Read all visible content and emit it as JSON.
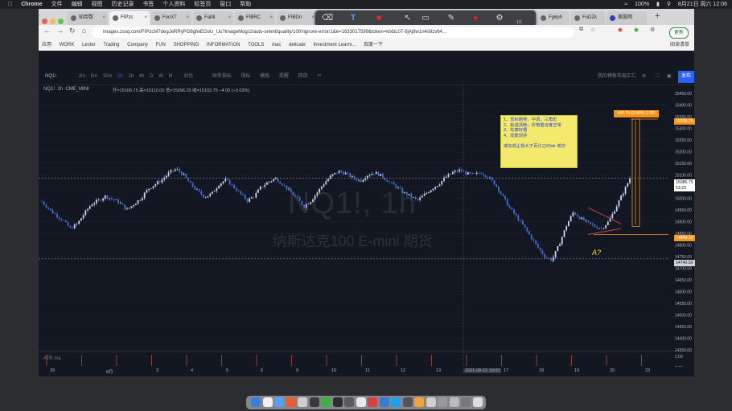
{
  "menubar": {
    "app": "Chrome",
    "items": [
      "文件",
      "编辑",
      "视图",
      "历史记录",
      "书签",
      "个人资料",
      "标签页",
      "窗口",
      "帮助"
    ],
    "battery": "100%",
    "datetime": "8月21日 周六 12:06"
  },
  "tabs": [
    {
      "label": "知否数",
      "active": false
    },
    {
      "label": "FIPzc",
      "active": true
    },
    {
      "label": "FonX7",
      "active": false
    },
    {
      "label": "FaMi",
      "active": false
    },
    {
      "label": "FIBRC",
      "active": false
    },
    {
      "label": "FIBDn",
      "active": false
    },
    {
      "label": "Fg6ph",
      "active": false
    },
    {
      "label": "FoDZk",
      "active": false
    },
    {
      "label": "美股网",
      "active": false
    }
  ],
  "annotation_toolbar": {
    "count": "1/1"
  },
  "address_bar": {
    "url": "images.zsxq.com/FIPzcM7degJeRRyPG8gfwEGoU_Uu?imageMogr2/auto-orient/quality/100!/ignore-error/1&e=1633017599&token=kIxbL07-8jAj8w1n4s9zv64...",
    "update_label": "更新"
  },
  "bookmarks": [
    "应用",
    "WORK",
    "Lester",
    "Trading",
    "Company",
    "FUN",
    "SHOPPING",
    "INFORMATION",
    "TOOLS",
    "mac",
    "delicate",
    "Investment Learni...",
    "百度一下",
    "阅读清单"
  ],
  "tv_toolbar": {
    "symbol": "NQ1!",
    "intervals": [
      "2m",
      "5m",
      "15m",
      "1h",
      "2h",
      "4h",
      "D",
      "W",
      "M"
    ],
    "items": [
      "对比",
      "财务指标",
      "指标",
      "模板",
      "提醒",
      "回放"
    ],
    "layout": "我的模板布局汇仁",
    "publish": "发布"
  },
  "legend": {
    "symbol": "NQ1!",
    "interval": "1h",
    "exchange": "CME_MINI",
    "ohlc": "开=15106.75 高=15110.00 低=15096.25 收=15102.75 −4.00 (−0.03%)"
  },
  "watermark": {
    "line1": "NQ1!, 1h",
    "line2": "纳斯达克100 E-mini 期货"
  },
  "note": {
    "text": "1、低标刷势，中调，三角形\n2、轨迹清晰，价格重合度正常\n3、轮廓好看\n4、动能较好\n\n或完成止损大于百分之60atr 或亦"
  },
  "measure_label": "445.75 (2.99%) 1783",
  "annotation_a": "A?",
  "atr_label": "ATR n/a",
  "chart_data": {
    "type": "candlestick",
    "symbol": "NQ1!",
    "timeframe": "1h",
    "y_axis_ticks": [
      15450.0,
      15400.0,
      15350.0,
      15300.0,
      15250.0,
      15200.0,
      15150.0,
      15100.0,
      15050.0,
      15000.0,
      14950.0,
      14900.0,
      14850.0,
      14800.0,
      14750.0,
      14700.0,
      14650.0,
      14600.0,
      14550.0,
      14500.0,
      14450.0,
      14400.0,
      14350.0
    ],
    "ylim": [
      14330,
      15470
    ],
    "x_axis_labels": [
      "29",
      "8月",
      "3",
      "4",
      "5",
      "6",
      "9",
      "10",
      "11",
      "12",
      "13",
      "2021-08-15 19:00",
      "17",
      "18",
      "19",
      "20",
      "23"
    ],
    "price_labels": [
      {
        "value": "15339.25",
        "bg": "#f7931a",
        "color": "#ffffff"
      },
      {
        "value": "15085.75",
        "bg": "#ffffff",
        "color": "#131722"
      },
      {
        "value": "53:23",
        "bg": "#ffffff",
        "color": "#131722"
      },
      {
        "value": "14844.50",
        "bg": "#f7931a",
        "color": "#ffffff"
      },
      {
        "value": "14740.50",
        "bg": "#d1d4dc",
        "color": "#131722"
      }
    ],
    "horizontal_lines": [
      15085.75,
      14740.5
    ],
    "close_path": [
      [
        0,
        14985
      ],
      [
        3,
        14940
      ],
      [
        6,
        14905
      ],
      [
        8,
        14870
      ],
      [
        10,
        14890
      ],
      [
        12,
        14935
      ],
      [
        14,
        14975
      ],
      [
        16,
        14990
      ],
      [
        18,
        15010
      ],
      [
        20,
        14995
      ],
      [
        22,
        14980
      ],
      [
        24,
        14950
      ],
      [
        26,
        14975
      ],
      [
        28,
        15000
      ],
      [
        30,
        15040
      ],
      [
        32,
        15060
      ],
      [
        34,
        15080
      ],
      [
        36,
        15110
      ],
      [
        38,
        15125
      ],
      [
        40,
        15100
      ],
      [
        42,
        15060
      ],
      [
        44,
        15030
      ],
      [
        46,
        15005
      ],
      [
        48,
        15020
      ],
      [
        50,
        15060
      ],
      [
        52,
        15080
      ],
      [
        54,
        15050
      ],
      [
        56,
        15020
      ],
      [
        58,
        14990
      ],
      [
        60,
        15010
      ],
      [
        62,
        15050
      ],
      [
        64,
        15070
      ],
      [
        66,
        15085
      ],
      [
        68,
        15060
      ],
      [
        70,
        15030
      ],
      [
        72,
        15000
      ],
      [
        74,
        14965
      ],
      [
        76,
        14990
      ],
      [
        78,
        15030
      ],
      [
        80,
        15070
      ],
      [
        82,
        15100
      ],
      [
        84,
        15115
      ],
      [
        86,
        15105
      ],
      [
        88,
        15085
      ],
      [
        90,
        15075
      ],
      [
        92,
        15100
      ],
      [
        94,
        15110
      ],
      [
        96,
        15095
      ],
      [
        98,
        15070
      ],
      [
        100,
        15050
      ],
      [
        102,
        15025
      ],
      [
        104,
        15010
      ],
      [
        106,
        14990
      ],
      [
        108,
        15015
      ],
      [
        110,
        15040
      ],
      [
        112,
        15060
      ],
      [
        114,
        15090
      ],
      [
        116,
        15110
      ],
      [
        118,
        15120
      ],
      [
        120,
        15105
      ],
      [
        122,
        15100
      ],
      [
        124,
        15110
      ],
      [
        126,
        15090
      ],
      [
        128,
        15060
      ],
      [
        130,
        15010
      ],
      [
        132,
        14960
      ],
      [
        134,
        14920
      ],
      [
        136,
        14880
      ],
      [
        138,
        14835
      ],
      [
        140,
        14790
      ],
      [
        142,
        14750
      ],
      [
        144,
        14735
      ],
      [
        146,
        14800
      ],
      [
        148,
        14880
      ],
      [
        150,
        14940
      ],
      [
        152,
        14915
      ],
      [
        154,
        14895
      ],
      [
        156,
        14880
      ],
      [
        158,
        14870
      ],
      [
        160,
        14900
      ],
      [
        162,
        14960
      ],
      [
        164,
        15020
      ],
      [
        166,
        15085
      ]
    ]
  }
}
